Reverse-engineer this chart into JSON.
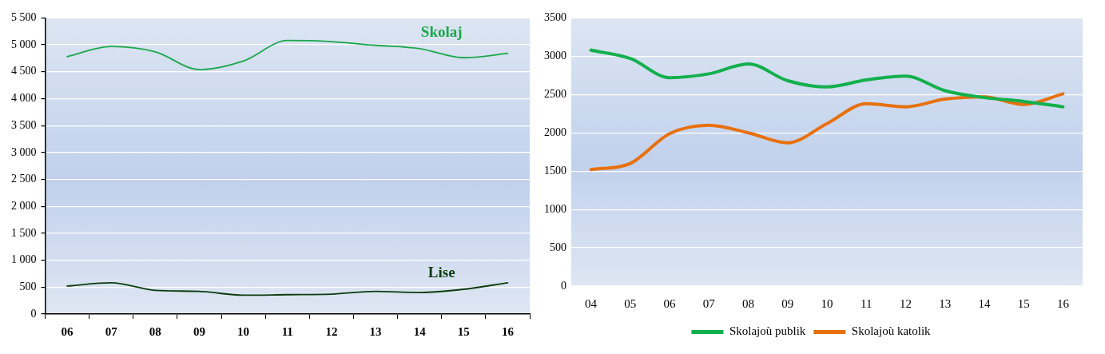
{
  "chart_data": [
    {
      "type": "line",
      "categories": [
        "06",
        "07",
        "08",
        "09",
        "10",
        "11",
        "12",
        "13",
        "14",
        "15",
        "16"
      ],
      "series": [
        {
          "name": "Skolaj",
          "color": "#1aa84a",
          "values": [
            4780,
            4970,
            4870,
            4540,
            4700,
            5080,
            5060,
            4990,
            4930,
            4760,
            4840
          ]
        },
        {
          "name": "Lise",
          "color": "#0b3d0b",
          "values": [
            520,
            580,
            440,
            420,
            350,
            360,
            370,
            420,
            400,
            460,
            580
          ]
        }
      ],
      "ylim": [
        0,
        5500
      ],
      "yticks": [
        0,
        500,
        {
          "value": 1000,
          "label": "1 000"
        },
        {
          "value": 1500,
          "label": "1 500"
        },
        {
          "value": 2000,
          "label": "2 000"
        },
        {
          "value": 2500,
          "label": "2 500"
        },
        {
          "value": 3000,
          "label": "3 000"
        },
        {
          "value": 3500,
          "label": "3 500"
        },
        {
          "value": 4000,
          "label": "4 000"
        },
        {
          "value": 4500,
          "label": "4 500"
        },
        {
          "value": 5000,
          "label": "5 000"
        },
        {
          "value": 5500,
          "label": "5 500"
        }
      ],
      "grid": "y",
      "legend": false,
      "marker": "none",
      "line_style": "solid"
    },
    {
      "type": "line",
      "categories": [
        "04",
        "05",
        "06",
        "07",
        "08",
        "09",
        "10",
        "11",
        "12",
        "13",
        "14",
        "15",
        "16"
      ],
      "series": [
        {
          "name": "Skolajoù publik",
          "color": "#12b04c",
          "values": [
            3080,
            2970,
            2720,
            2770,
            2900,
            2680,
            2600,
            2690,
            2740,
            2550,
            2460,
            2410,
            2340
          ]
        },
        {
          "name": "Skolajoù katolik",
          "color": "#e8700c",
          "values": [
            1520,
            1600,
            1990,
            2100,
            2000,
            1870,
            2120,
            2380,
            2340,
            2440,
            2470,
            2370,
            2510
          ]
        }
      ],
      "ylim": [
        0,
        3500
      ],
      "yticks": [
        0,
        500,
        1000,
        1500,
        2000,
        2500,
        3000,
        3500
      ],
      "grid": "y",
      "legend": "bottom",
      "marker": "none",
      "line_style": "solid"
    }
  ]
}
